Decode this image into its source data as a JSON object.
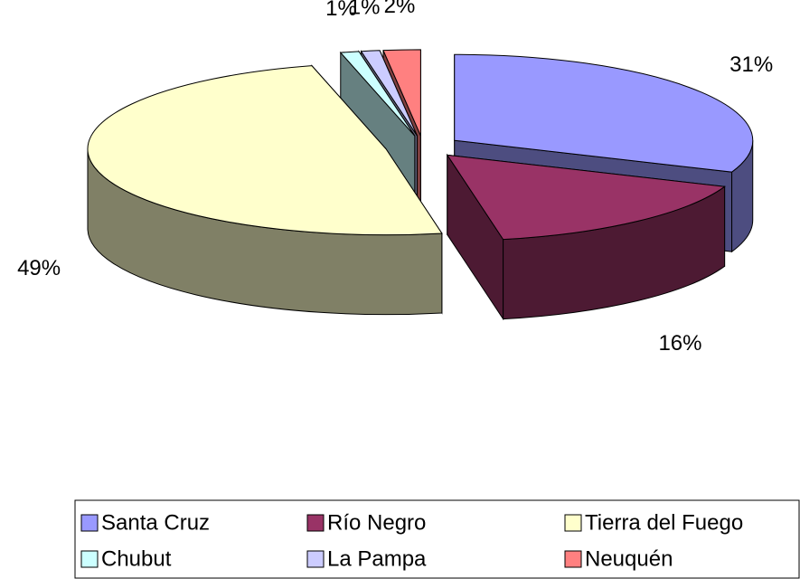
{
  "chart_data": {
    "type": "pie3d",
    "categories": [
      "Santa Cruz",
      "Río Negro",
      "Tierra del Fuego",
      "Chubut",
      "La Pampa",
      "Neuquén"
    ],
    "values": [
      31,
      16,
      49,
      1,
      1,
      2
    ],
    "value_labels": [
      "31%",
      "16%",
      "49%",
      "1%",
      "1%",
      "2%"
    ],
    "colors": [
      "#9999ff",
      "#993366",
      "#ffffcc",
      "#ccffff",
      "#ccccff",
      "#ff8080"
    ],
    "legend": "bottom"
  }
}
